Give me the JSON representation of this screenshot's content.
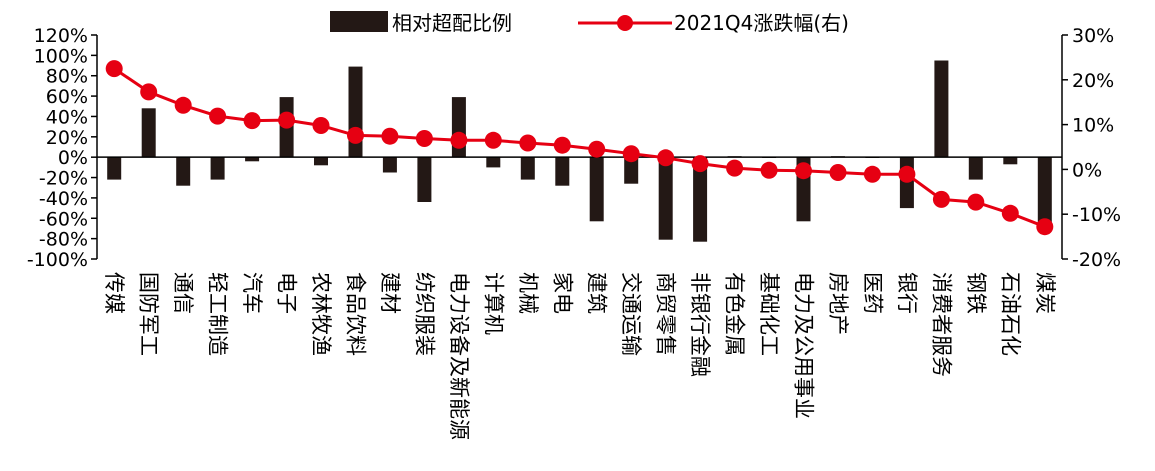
{
  "chart_data": {
    "type": "bar+line",
    "categories": [
      "传媒",
      "国防军工",
      "通信",
      "轻工制造",
      "汽车",
      "电子",
      "农林牧渔",
      "食品饮料",
      "建材",
      "纺织服装",
      "电力设备及新能源",
      "计算机",
      "机械",
      "家电",
      "建筑",
      "交通运输",
      "商贸零售",
      "非银行金融",
      "有色金属",
      "基础化工",
      "电力及公用事业",
      "房地产",
      "医药",
      "银行",
      "消费者服务",
      "钢铁",
      "石油石化",
      "煤炭"
    ],
    "series": [
      {
        "name": "相对超配比例",
        "type": "bar",
        "axis": "left",
        "color": "#231815",
        "values": [
          -22,
          48,
          -28,
          -22,
          -4,
          59,
          -8,
          89,
          -15,
          -44,
          59,
          -10,
          -22,
          -28,
          -63,
          -26,
          -81,
          -83,
          1,
          0,
          -63,
          1,
          0,
          -50,
          95,
          -22,
          -7,
          -73
        ]
      },
      {
        "name": "2021Q4涨跌幅(右)",
        "type": "line",
        "axis": "right",
        "color": "#e60012",
        "values": [
          22.5,
          17.3,
          14.3,
          11.9,
          10.9,
          11.0,
          9.8,
          7.6,
          7.4,
          6.9,
          6.5,
          6.5,
          5.9,
          5.4,
          4.5,
          3.5,
          2.6,
          1.3,
          0.3,
          -0.2,
          -0.3,
          -0.7,
          -1.1,
          -1.1,
          -6.7,
          -7.3,
          -9.8,
          -12.8
        ]
      }
    ],
    "y_left": {
      "min": -100,
      "max": 120,
      "step": 20,
      "ticks": [
        "-100%",
        "-80%",
        "-60%",
        "-40%",
        "-20%",
        "0%",
        "20%",
        "40%",
        "60%",
        "80%",
        "100%",
        "120%"
      ]
    },
    "y_right": {
      "min": -20,
      "max": 30,
      "step": 10,
      "ticks": [
        "-20%",
        "-10%",
        "0%",
        "10%",
        "20%",
        "30%"
      ]
    },
    "legend_position": "top-center",
    "grid": false
  }
}
